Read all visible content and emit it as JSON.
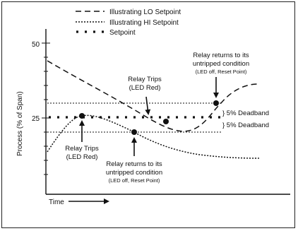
{
  "legend": {
    "lo_setpoint": "Illustrating LO Setpoint",
    "hi_setpoint": "Illustrating HI Setpoint",
    "setpoint": "Setpoint"
  },
  "axis": {
    "y_label": "Process (% of Span)",
    "y_tick_50": "50",
    "y_tick_25": "25",
    "x_label": "Time"
  },
  "deadband": {
    "upper": "} 5% Deadband",
    "lower": "} 5% Deadband"
  },
  "annotations": {
    "relay_trips_left": {
      "line1": "Relay Trips",
      "line2": "(LED Red)"
    },
    "relay_trips_center": {
      "line1": "Relay Trips",
      "line2": "(LED Red)"
    },
    "relay_returns_bottom": {
      "line1": "Relay returns to its",
      "line2": "untripped condition",
      "line3": "(LED off, Reset Point)"
    },
    "relay_returns_top": {
      "line1": "Relay returns to its",
      "line2": "untripped condition",
      "line3": "(LED off, Reset Point)"
    }
  }
}
